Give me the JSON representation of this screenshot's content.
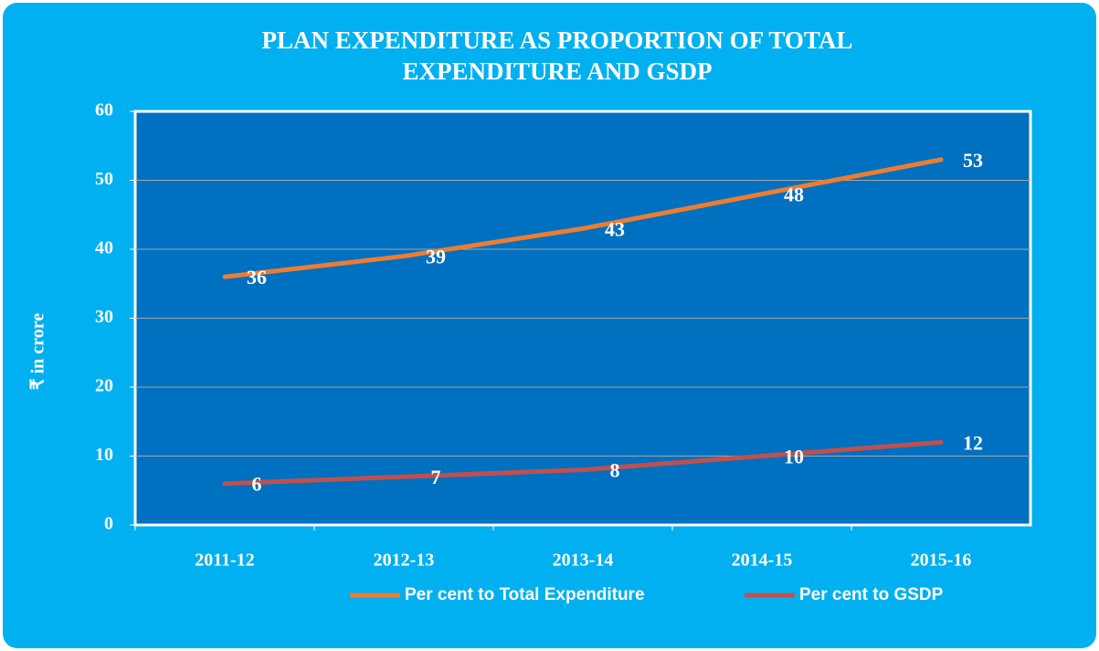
{
  "chart_data": {
    "type": "line",
    "title": "PLAN EXPENDITURE AS PROPORTION OF TOTAL EXPENDITURE AND GSDP",
    "y_label": "₹ in crore",
    "categories": [
      "2011-12",
      "2012-13",
      "2013-14",
      "2014-15",
      "2015-16"
    ],
    "series": [
      {
        "name": "Per cent to Total Expenditure",
        "color": "#ed7d31",
        "values": [
          36,
          39,
          43,
          48,
          53
        ]
      },
      {
        "name": "Per cent to GSDP",
        "color": "#c0504d",
        "values": [
          6,
          7,
          8,
          10,
          12
        ]
      }
    ],
    "ylim": [
      0,
      60
    ],
    "yticks": [
      0,
      10,
      20,
      30,
      40,
      50,
      60
    ],
    "grid": true,
    "legend": "bottom"
  }
}
